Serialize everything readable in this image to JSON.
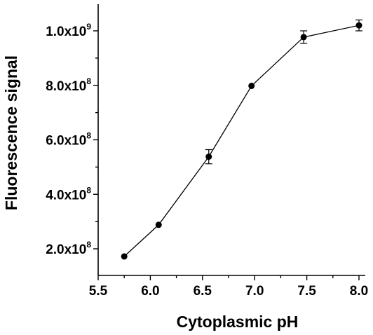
{
  "chart_data": {
    "type": "line",
    "title": "",
    "xlabel": "Cytoplasmic pH",
    "ylabel": "Fluorescence signal",
    "xlim": [
      5.5,
      8.05
    ],
    "ylim": [
      105000000.0,
      1100000000.0
    ],
    "x_ticks": [
      {
        "value": 5.5,
        "label": "5.5"
      },
      {
        "value": 6.0,
        "label": "6.0"
      },
      {
        "value": 6.5,
        "label": "6.5"
      },
      {
        "value": 7.0,
        "label": "7.0"
      },
      {
        "value": 7.5,
        "label": "7.5"
      },
      {
        "value": 8.0,
        "label": "8.0"
      }
    ],
    "y_ticks": [
      {
        "value": 200000000.0,
        "mantissa": "2.0x10",
        "exponent": "8"
      },
      {
        "value": 400000000.0,
        "mantissa": "4.0x10",
        "exponent": "8"
      },
      {
        "value": 600000000.0,
        "mantissa": "6.0x10",
        "exponent": "8"
      },
      {
        "value": 800000000.0,
        "mantissa": "8.0x10",
        "exponent": "8"
      },
      {
        "value": 1000000000.0,
        "mantissa": "1.0x10",
        "exponent": "9"
      }
    ],
    "series": [
      {
        "x": [
          5.75,
          6.08,
          6.56,
          6.97,
          7.47,
          8.0
        ],
        "y": [
          172000000.0,
          288000000.0,
          538000000.0,
          798000000.0,
          977000000.0,
          1020000000.0
        ],
        "err": [
          0,
          0,
          26000000.0,
          0,
          23000000.0,
          20000000.0
        ]
      }
    ],
    "grid": false,
    "legend": "none"
  }
}
